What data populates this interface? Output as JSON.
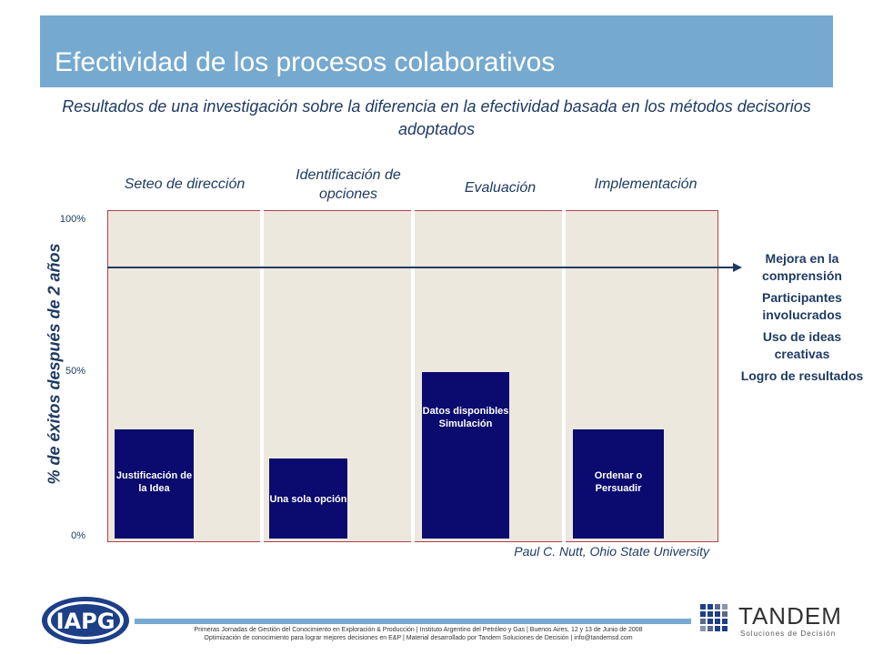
{
  "title": "Efectividad de los procesos colaborativos",
  "subtitle": "Resultados de una investigación sobre la diferencia en la efectividad basada en los métodos decisorios adoptados",
  "chart_data": {
    "type": "bar",
    "categories": [
      "Seteo de dirección",
      "Identificación de opciones",
      "Evaluación",
      "Implementación"
    ],
    "values": [
      34,
      25,
      52,
      34
    ],
    "bar_labels": [
      "Justificación de la Idea",
      "Una sola opción",
      "Datos disponibles Simulación",
      "Ordenar o Persuadir"
    ],
    "ylabel": "% de éxitos después de 2 años",
    "yticks": [
      "100%",
      "50%",
      "0%"
    ],
    "ylim": [
      0,
      100
    ],
    "reference_line": 85,
    "grid": false
  },
  "side_labels": [
    "Mejora en la comprensión",
    "Participantes involucrados",
    "Uso de ideas creativas",
    "Logro de resultados"
  ],
  "source": "Paul C. Nutt, Ohio State University",
  "footer": {
    "line1": "Primeras Jornadas de Gestión del Conocimiento en Exploración & Producción | Instituto Argentino del Petróleo y Gas | Buenos Aires, 12 y 13 de Junio de 2008",
    "line2": "Optimización de conocimiento para lograr mejores decisiones en E&P | Material desarrollado por Tandem Soluciones de Decisión | info@tandemsd.com"
  },
  "logos": {
    "left": "IAPG",
    "right_word": "TANDEM",
    "right_sub": "Soluciones de Decisión"
  },
  "colors": {
    "title_bar": "#76a9cf",
    "bar": "#0b0a6e",
    "plot_bg": "#ede8dd",
    "text": "#1f3b63"
  }
}
